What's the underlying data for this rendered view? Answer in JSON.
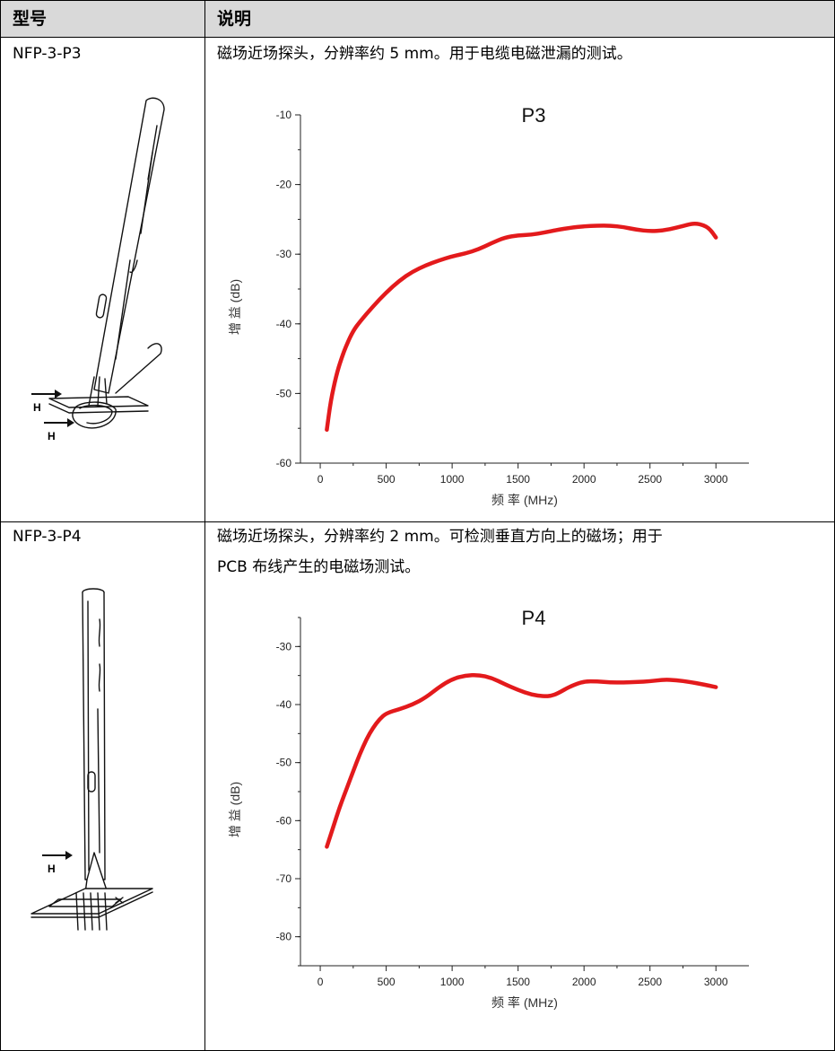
{
  "table": {
    "headers": {
      "model": "型号",
      "description": "说明"
    },
    "rows": [
      {
        "model": "NFP-3-P3",
        "description_lines": [
          "磁场近场探头，分辨率约 5 mm。用于电缆电磁泄漏的测试。"
        ],
        "illustration": {
          "field_labels": [
            "H",
            "H"
          ]
        }
      },
      {
        "model": "NFP-3-P4",
        "description_lines": [
          "磁场近场探头，分辨率约 2 mm。可检测垂直方向上的磁场；用于",
          "PCB 布线产生的电磁场测试。"
        ],
        "illustration": {
          "field_labels": [
            "H"
          ]
        }
      }
    ]
  },
  "chart_data": [
    {
      "type": "line",
      "title": "P3",
      "xlabel": "频 率 (MHz)",
      "ylabel": "增 益 (dB)",
      "xlim": [
        -150,
        3250
      ],
      "ylim": [
        -60,
        -10
      ],
      "xticks": [
        "0",
        "500",
        "1000",
        "1500",
        "2000",
        "2500",
        "3000"
      ],
      "yticks": [
        "-10",
        "-20",
        "-30",
        "-40",
        "-50",
        "-60"
      ],
      "xtick_values": [
        0,
        500,
        1000,
        1500,
        2000,
        2500,
        3000
      ],
      "ytick_values": [
        -10,
        -20,
        -30,
        -40,
        -50,
        -60
      ],
      "grid": false,
      "color": "#e31a1c",
      "series": [
        {
          "x": [
            50,
            80,
            120,
            160,
            200,
            250,
            300,
            400,
            500,
            600,
            700,
            800,
            900,
            1000,
            1100,
            1200,
            1300,
            1400,
            1500,
            1600,
            1700,
            1800,
            1900,
            2000,
            2100,
            2200,
            2300,
            2400,
            2500,
            2600,
            2700,
            2800,
            2850,
            2900,
            2950,
            3000
          ],
          "y": [
            -55.2,
            -51,
            -47.5,
            -45,
            -43,
            -41,
            -39.7,
            -37.5,
            -35.5,
            -33.8,
            -32.5,
            -31.6,
            -30.9,
            -30.3,
            -29.9,
            -29.3,
            -28.4,
            -27.6,
            -27.3,
            -27.2,
            -26.9,
            -26.5,
            -26.2,
            -26.0,
            -25.9,
            -25.9,
            -26.1,
            -26.5,
            -26.7,
            -26.6,
            -26.2,
            -25.7,
            -25.6,
            -25.8,
            -26.3,
            -27.6
          ]
        }
      ]
    },
    {
      "type": "line",
      "title": "P4",
      "xlabel": "频 率 (MHz)",
      "ylabel": "增 益 (dB)",
      "xlim": [
        -150,
        3250
      ],
      "ylim": [
        -85,
        -25
      ],
      "xticks": [
        "0",
        "500",
        "1000",
        "1500",
        "2000",
        "2500",
        "3000"
      ],
      "yticks": [
        "-30",
        "-40",
        "-50",
        "-60",
        "-70",
        "-80"
      ],
      "xtick_values": [
        0,
        500,
        1000,
        1500,
        2000,
        2500,
        3000
      ],
      "ytick_values": [
        -30,
        -40,
        -50,
        -60,
        -70,
        -80
      ],
      "grid": false,
      "color": "#e31a1c",
      "series": [
        {
          "x": [
            50,
            100,
            150,
            200,
            250,
            300,
            350,
            400,
            450,
            500,
            600,
            700,
            800,
            900,
            1000,
            1100,
            1200,
            1300,
            1400,
            1500,
            1600,
            1700,
            1750,
            1800,
            1900,
            2000,
            2100,
            2200,
            2300,
            2400,
            2500,
            2600,
            2700,
            2800,
            2900,
            3000
          ],
          "y": [
            -64.5,
            -61,
            -57.5,
            -54.5,
            -51.5,
            -48.5,
            -46,
            -44,
            -42.5,
            -41.5,
            -40.8,
            -40,
            -38.8,
            -37,
            -35.6,
            -35,
            -34.9,
            -35.4,
            -36.5,
            -37.5,
            -38.3,
            -38.6,
            -38.5,
            -38.1,
            -36.8,
            -36,
            -36,
            -36.2,
            -36.2,
            -36.1,
            -36,
            -35.7,
            -35.8,
            -36.1,
            -36.5,
            -37
          ]
        }
      ]
    }
  ]
}
